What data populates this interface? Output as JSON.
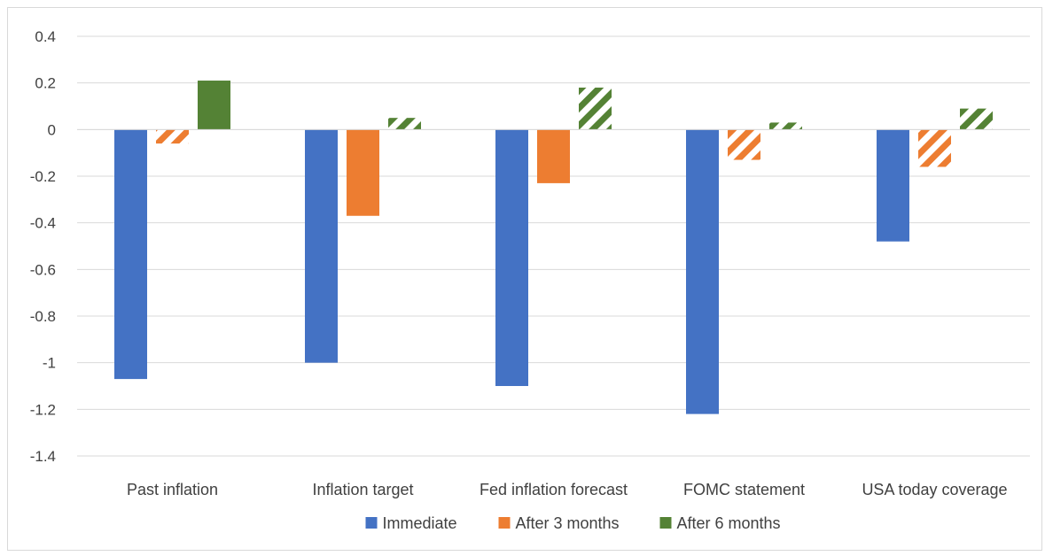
{
  "chart_data": {
    "type": "bar",
    "title": "",
    "xlabel": "",
    "ylabel": "",
    "categories": [
      "Past inflation",
      "Inflation target",
      "Fed inflation forecast",
      "FOMC statement",
      "USA today coverage"
    ],
    "ylim": [
      -1.4,
      0.4
    ],
    "yticks": [
      0.4,
      0.2,
      0,
      -0.2,
      -0.4,
      -0.6,
      -0.8,
      -1,
      -1.2,
      -1.4
    ],
    "grid": true,
    "legend_position": "bottom",
    "series": [
      {
        "name": "Immediate",
        "color": "#4472c4",
        "values": [
          -1.07,
          -1.0,
          -1.1,
          -1.22,
          -0.48
        ],
        "hatched": [
          false,
          false,
          false,
          false,
          false
        ]
      },
      {
        "name": "After 3 months",
        "color": "#ed7d31",
        "values": [
          -0.06,
          -0.37,
          -0.23,
          -0.13,
          -0.16
        ],
        "hatched": [
          true,
          false,
          false,
          true,
          true
        ]
      },
      {
        "name": "After 6 months",
        "color": "#548235",
        "values": [
          0.21,
          0.05,
          0.18,
          0.03,
          0.09
        ],
        "hatched": [
          false,
          true,
          true,
          true,
          true
        ]
      }
    ]
  }
}
